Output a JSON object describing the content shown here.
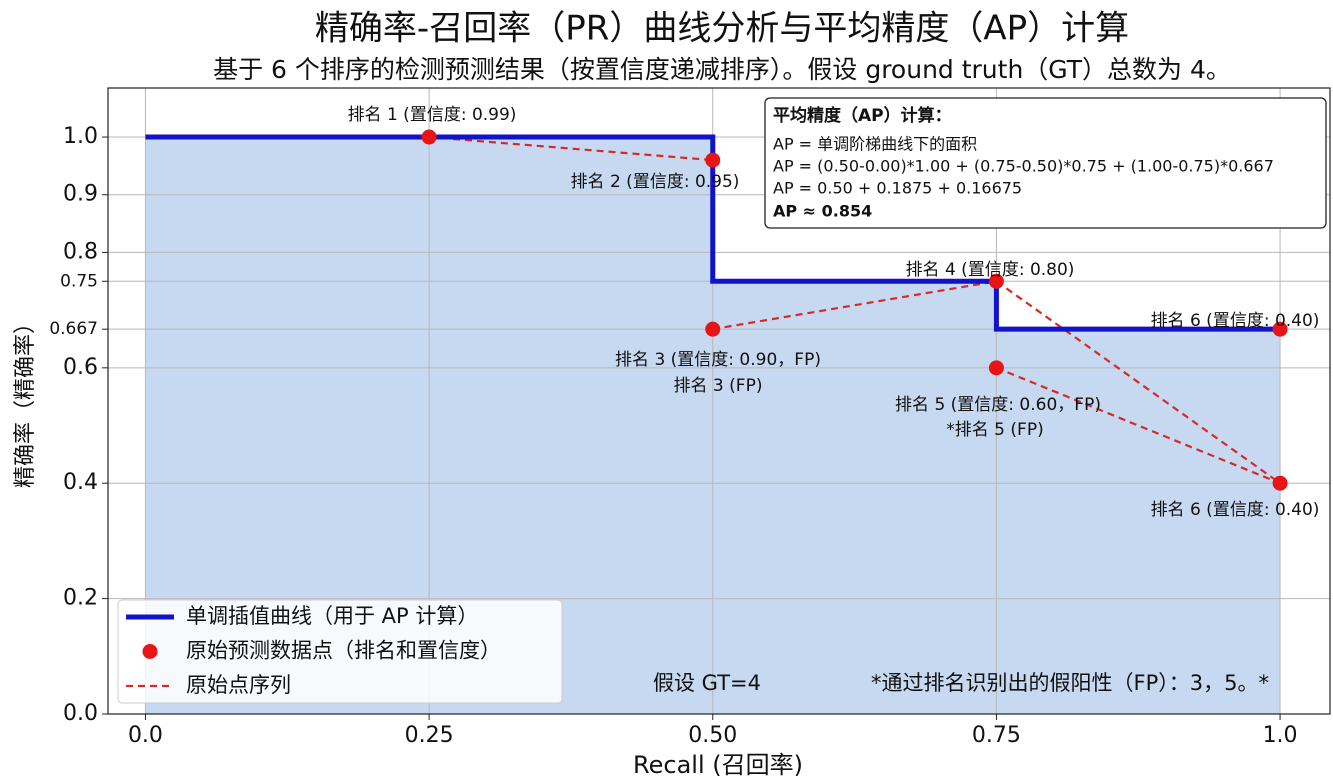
{
  "chart_data": {
    "type": "line",
    "title": "精确率-召回率（PR）曲线分析与平均精度（AP）计算",
    "subtitle": "基于 6 个排序的检测预测结果（按置信度递减排序）。假设 ground truth（GT）总数为 4。",
    "x_label": "Recall (召回率)",
    "y_label": "精确率（精确率）",
    "xlim": [
      -0.033,
      1.044
    ],
    "ylim": [
      0,
      1.085
    ],
    "xticks": [
      {
        "value": 0,
        "label": "0.0"
      },
      0.25,
      {
        "value": 0.5,
        "label": "0.50"
      },
      0.75,
      {
        "value": 1,
        "label": "1.0"
      }
    ],
    "yticks": [
      {
        "value": 0,
        "label": "0.0"
      },
      0.2,
      0.4,
      0.6,
      0.667,
      0.75,
      0.8,
      0.9,
      {
        "value": 1,
        "label": "1.0"
      }
    ],
    "grid": true,
    "legend": "lower left",
    "fill_color": "#c6d9f1",
    "series": [
      {
        "name": "单调插值曲线（用于 AP 计算）",
        "style": "step",
        "color": "#1212c8",
        "x": [
          0,
          0.5,
          0.5,
          0.75,
          0.75,
          1.0
        ],
        "values": [
          1.0,
          1.0,
          0.75,
          0.75,
          0.667,
          0.667
        ]
      },
      {
        "name": "原始预测数据点（排名和置信度）",
        "style": "points",
        "color": "#e81416",
        "x": [
          0.25,
          0.5,
          0.5,
          0.75,
          0.75,
          1.0,
          1.0
        ],
        "values": [
          1.0,
          0.96,
          0.667,
          0.75,
          0.6,
          0.4,
          0.667
        ]
      },
      {
        "name": "原始点序列",
        "style": "dashed",
        "color": "#d42a2a",
        "x": [
          0.25,
          0.5,
          null,
          0.5,
          0.75,
          1.0,
          null,
          0.75,
          1.0
        ],
        "values": [
          1.0,
          0.96,
          null,
          0.667,
          0.75,
          0.4,
          null,
          0.6,
          0.4
        ]
      }
    ],
    "annotations": [
      "排名 1 (置信度: 0.99)",
      "排名 2 (置信度: 0.95)",
      "排名 4 (置信度: 0.80)",
      "排名 6 (置信度: 0.40)",
      "排名 3 (置信度: 0.90，FP)",
      "排名 3 (FP)",
      "排名 5 (置信度: 0.60，FP)",
      "*排名 5 (FP)",
      "排名 6 (置信度: 0.40)"
    ],
    "ap_box": {
      "title": "平均精度（AP）计算：",
      "lines": [
        "AP = 单调阶梯曲线下的面积",
        "AP = (0.50-0.00)*1.00 + (0.75-0.50)*0.75 + (1.00-0.75)*0.667",
        "AP = 0.50 + 0.1875 + 0.16675"
      ],
      "result": "AP ≈ 0.854"
    },
    "notes": [
      "假设 GT=4",
      "*通过排名识别出的假阳性（FP）：3，5。*"
    ]
  }
}
